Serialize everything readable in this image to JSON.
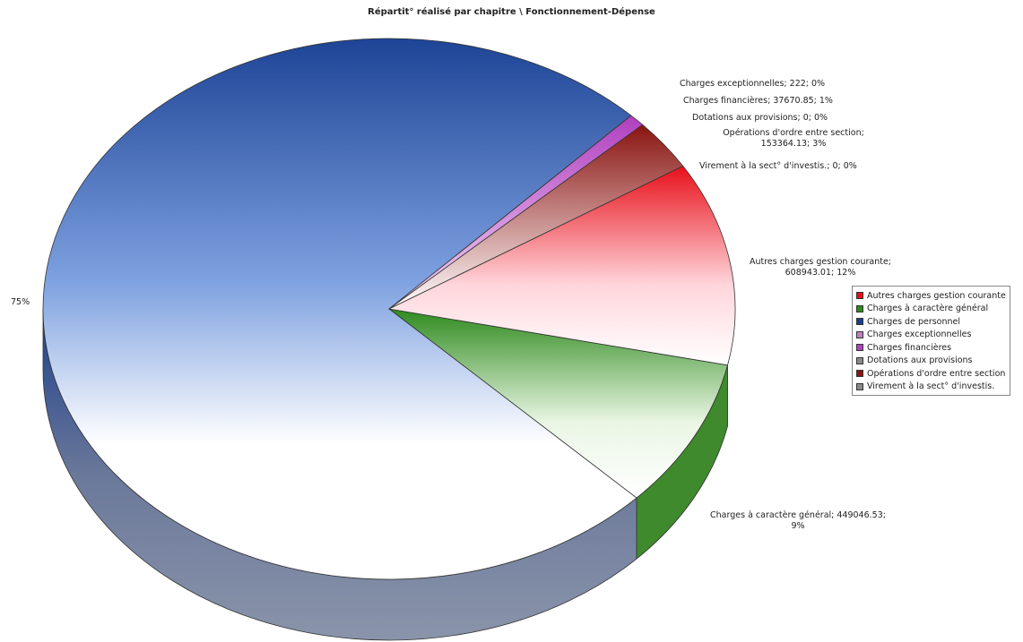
{
  "chart_data": {
    "type": "pie",
    "title": "Répartit° réalisé par chapitre \\ Fonctionnement-Dépense",
    "series": [
      {
        "name": "Autres charges gestion courante",
        "value": 608943.01,
        "percent": 12,
        "color": "#e8101a"
      },
      {
        "name": "Charges à caractère général",
        "value": 449046.53,
        "percent": 9,
        "color": "#2e8a1e"
      },
      {
        "name": "Charges de personnel",
        "percent": 75,
        "color": "#1a3f8f"
      },
      {
        "name": "Charges exceptionnelles",
        "value": 222,
        "percent": 0,
        "color": "#c080c0"
      },
      {
        "name": "Charges financières",
        "value": 37670.85,
        "percent": 1,
        "color": "#b040c0"
      },
      {
        "name": "Dotations aux provisions",
        "value": 0,
        "percent": 0,
        "color": "#8a8a8a"
      },
      {
        "name": "Opérations d'ordre entre section",
        "value": 153364.13,
        "percent": 3,
        "color": "#8a1410"
      },
      {
        "name": "Virement à la sect° d'investis.",
        "value": 0,
        "percent": 0,
        "color": "#8a8a8a"
      }
    ],
    "data_labels": {
      "autres_line1": "Autres charges gestion courante;",
      "autres_line2": "608943.01; 12%",
      "general_line1": "Charges à caractère général; 449046.53;",
      "general_line2": "9%",
      "exceptionnelles": "Charges exceptionnelles; 222; 0%",
      "financieres": "Charges financières; 37670.85; 1%",
      "dotations": "Dotations aux provisions; 0; 0%",
      "operations_line1": "Opérations d'ordre entre section;",
      "operations_line2": "153364.13; 3%",
      "virement": "Virement à la sect° d'investis.; 0; 0%",
      "personnel": "75%"
    },
    "legend": [
      "Autres charges gestion courante",
      "Charges à caractère général",
      "Charges de personnel",
      "Charges exceptionnelles",
      "Charges financières",
      "Dotations aux provisions",
      "Opérations d'ordre entre section",
      "Virement à la sect° d'investis."
    ],
    "legend_placement": "right",
    "style": "3d-pie"
  }
}
